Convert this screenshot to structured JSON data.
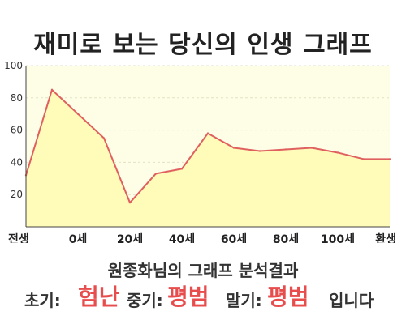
{
  "title": "재미로 보는 당신의 인생 그래프",
  "summary": "원종화님의 그래프 분석결과",
  "result": {
    "early_label": "초기:",
    "early_value": "험난",
    "mid_label": "중기:",
    "mid_value": "평범",
    "late_label": "말기:",
    "late_value": "평범",
    "suffix": "입니다"
  },
  "colors": {
    "line": "#e06060",
    "fill": "#fffbb8",
    "plot_bg": "#fefee6",
    "accent": "#e84d4d"
  },
  "chart_data": {
    "type": "area",
    "title": "재미로 보는 당신의 인생 그래프",
    "xlabel": "",
    "ylabel": "",
    "ylim": [
      0,
      100
    ],
    "yticks": [
      20,
      40,
      60,
      80,
      100
    ],
    "grid": true,
    "x_tick_labels": [
      "전생",
      "0세",
      "20세",
      "40세",
      "60세",
      "80세",
      "100세",
      "환생"
    ],
    "x": [
      -1,
      0,
      1,
      2,
      3,
      4,
      5,
      6,
      7,
      8,
      9,
      10,
      11,
      12,
      13
    ],
    "values": [
      32,
      85,
      70,
      55,
      15,
      33,
      36,
      58,
      49,
      47,
      48,
      49,
      46,
      42,
      42
    ]
  }
}
